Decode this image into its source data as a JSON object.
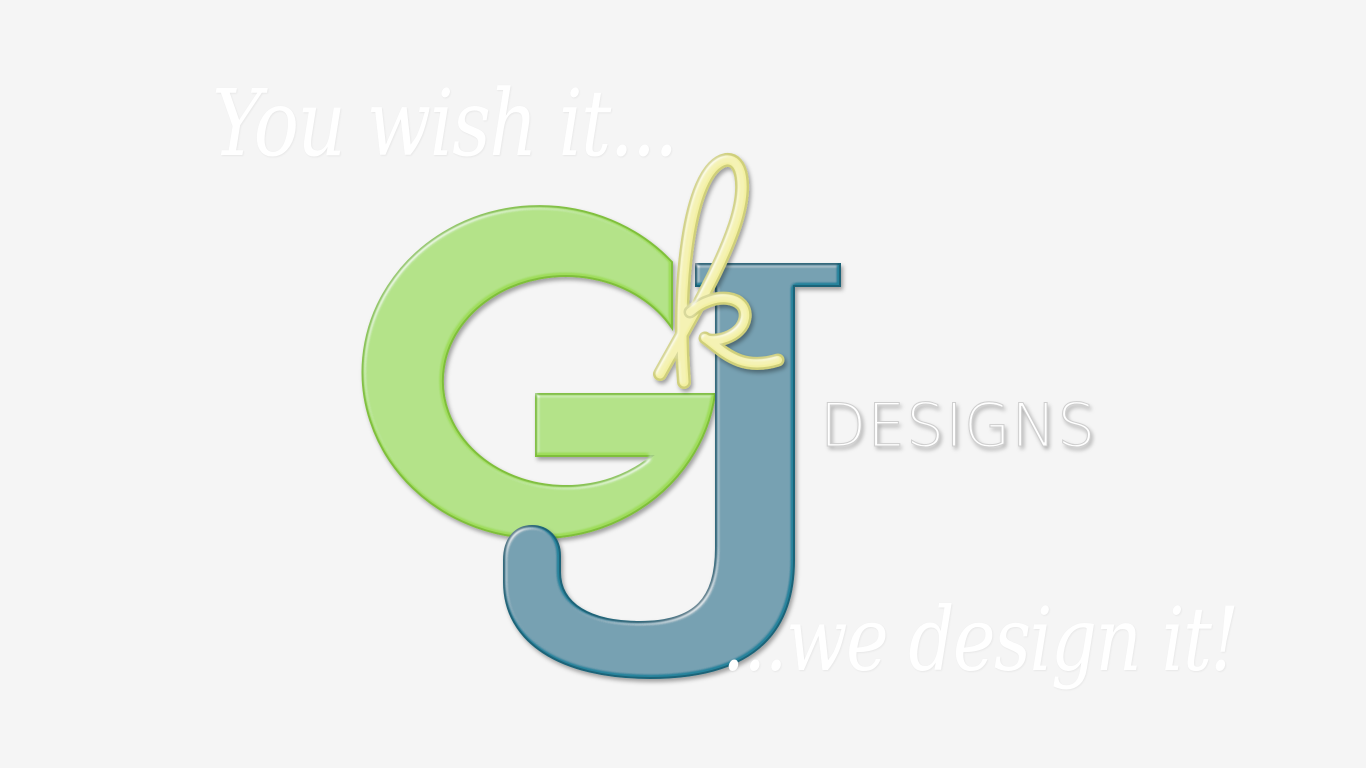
{
  "logo": {
    "letter_primary": "G",
    "letter_secondary": "J",
    "script_initial": "k",
    "word": "DESIGNS"
  },
  "tagline": {
    "top": "You wish it...",
    "bottom": "...we design it!"
  },
  "colors": {
    "background": "#f5f5f5",
    "g_green": "#9fdd5a",
    "j_teal": "#27839c",
    "k_yellow": "#f3f0a0",
    "text_white": "#ffffff"
  }
}
